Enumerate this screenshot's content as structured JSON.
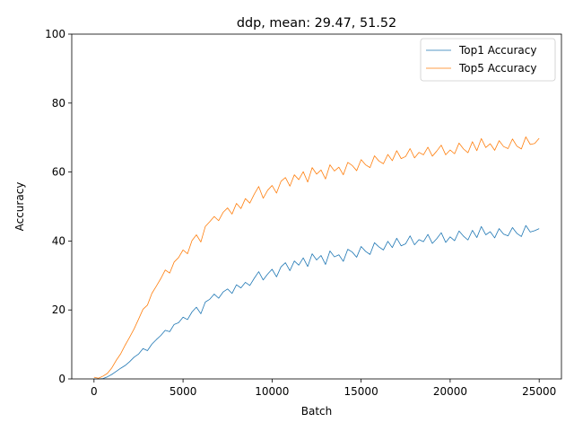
{
  "chart_data": {
    "type": "line",
    "title": "ddp, mean: 29.47, 51.52",
    "xlabel": "Batch",
    "ylabel": "Accuracy",
    "xlim": [
      -1250,
      26250
    ],
    "ylim": [
      0,
      100
    ],
    "xticks": [
      0,
      5000,
      10000,
      15000,
      20000,
      25000
    ],
    "yticks": [
      0,
      20,
      40,
      60,
      80,
      100
    ],
    "legend_position": "upper-right",
    "grid": false,
    "series": [
      {
        "name": "Top1 Accuracy",
        "color": "#1f77b4",
        "x": [
          0,
          250,
          500,
          750,
          1000,
          1250,
          1500,
          1750,
          2000,
          2250,
          2500,
          2750,
          3000,
          3250,
          3500,
          3750,
          4000,
          4250,
          4500,
          4750,
          5000,
          5250,
          5500,
          5750,
          6000,
          6250,
          6500,
          6750,
          7000,
          7250,
          7500,
          7750,
          8000,
          8250,
          8500,
          8750,
          9000,
          9250,
          9500,
          9750,
          10000,
          10250,
          10500,
          10750,
          11000,
          11250,
          11500,
          11750,
          12000,
          12250,
          12500,
          12750,
          13000,
          13250,
          13500,
          13750,
          14000,
          14250,
          14500,
          14750,
          15000,
          15250,
          15500,
          15750,
          16000,
          16250,
          16500,
          16750,
          17000,
          17250,
          17500,
          17750,
          18000,
          18250,
          18500,
          18750,
          19000,
          19250,
          19500,
          19750,
          20000,
          20250,
          20500,
          20750,
          21000,
          21250,
          21500,
          21750,
          22000,
          22250,
          22500,
          22750,
          23000,
          23250,
          23500,
          23750,
          24000,
          24250,
          24500,
          24750,
          25000
        ],
        "values": [
          0.0,
          0.0,
          0.1,
          0.6,
          1.3,
          2.2,
          3.1,
          3.9,
          5.0,
          6.3,
          7.2,
          8.8,
          8.2,
          10.1,
          11.4,
          12.6,
          14.1,
          13.7,
          15.8,
          16.3,
          17.9,
          17.2,
          19.4,
          20.8,
          18.9,
          22.3,
          23.1,
          24.6,
          23.4,
          25.2,
          26.1,
          24.8,
          27.3,
          26.4,
          28.0,
          27.1,
          29.2,
          31.1,
          28.7,
          30.4,
          31.8,
          29.6,
          32.5,
          33.7,
          31.4,
          34.2,
          33.0,
          35.1,
          32.6,
          36.3,
          34.5,
          35.8,
          33.2,
          37.1,
          35.4,
          36.0,
          34.1,
          37.6,
          36.8,
          35.3,
          38.4,
          37.0,
          36.1,
          39.5,
          38.3,
          37.4,
          39.9,
          38.1,
          40.8,
          38.6,
          39.2,
          41.5,
          38.9,
          40.4,
          39.8,
          41.9,
          39.3,
          40.7,
          42.4,
          39.6,
          41.2,
          40.1,
          42.9,
          41.4,
          40.3,
          43.1,
          41.0,
          44.2,
          41.8,
          42.7,
          40.9,
          43.6,
          42.0,
          41.5,
          43.9,
          42.2,
          41.3,
          44.5,
          42.6,
          43.0,
          43.6
        ]
      },
      {
        "name": "Top5 Accuracy",
        "color": "#ff7f0e",
        "x": [
          0,
          250,
          500,
          750,
          1000,
          1250,
          1500,
          1750,
          2000,
          2250,
          2500,
          2750,
          3000,
          3250,
          3500,
          3750,
          4000,
          4250,
          4500,
          4750,
          5000,
          5250,
          5500,
          5750,
          6000,
          6250,
          6500,
          6750,
          7000,
          7250,
          7500,
          7750,
          8000,
          8250,
          8500,
          8750,
          9000,
          9250,
          9500,
          9750,
          10000,
          10250,
          10500,
          10750,
          11000,
          11250,
          11500,
          11750,
          12000,
          12250,
          12500,
          12750,
          13000,
          13250,
          13500,
          13750,
          14000,
          14250,
          14500,
          14750,
          15000,
          15250,
          15500,
          15750,
          16000,
          16250,
          16500,
          16750,
          17000,
          17250,
          17500,
          17750,
          18000,
          18250,
          18500,
          18750,
          19000,
          19250,
          19500,
          19750,
          20000,
          20250,
          20500,
          20750,
          21000,
          21250,
          21500,
          21750,
          22000,
          22250,
          22500,
          22750,
          23000,
          23250,
          23500,
          23750,
          24000,
          24250,
          24500,
          24750,
          25000
        ],
        "values": [
          0.5,
          0.2,
          0.8,
          1.6,
          3.2,
          5.4,
          7.3,
          9.8,
          12.1,
          14.5,
          17.3,
          20.2,
          21.4,
          24.8,
          26.9,
          29.1,
          31.6,
          30.7,
          33.9,
          35.2,
          37.4,
          36.3,
          40.1,
          41.8,
          39.7,
          44.2,
          45.6,
          47.1,
          45.9,
          48.3,
          49.6,
          47.8,
          50.9,
          49.4,
          52.3,
          51.0,
          53.6,
          55.8,
          52.4,
          54.7,
          56.1,
          53.9,
          57.3,
          58.4,
          55.9,
          59.2,
          57.8,
          60.1,
          57.1,
          61.3,
          59.4,
          60.6,
          58.0,
          62.1,
          60.3,
          61.4,
          59.2,
          62.8,
          61.9,
          60.4,
          63.6,
          62.1,
          61.3,
          64.7,
          63.2,
          62.4,
          65.1,
          63.3,
          66.2,
          63.9,
          64.5,
          66.8,
          64.1,
          65.7,
          65.0,
          67.2,
          64.6,
          66.1,
          67.8,
          65.0,
          66.4,
          65.3,
          68.4,
          66.7,
          65.6,
          68.8,
          66.2,
          69.7,
          67.1,
          68.2,
          66.3,
          69.1,
          67.4,
          66.8,
          69.6,
          67.5,
          66.7,
          70.2,
          68.0,
          68.3,
          69.8
        ]
      }
    ]
  }
}
